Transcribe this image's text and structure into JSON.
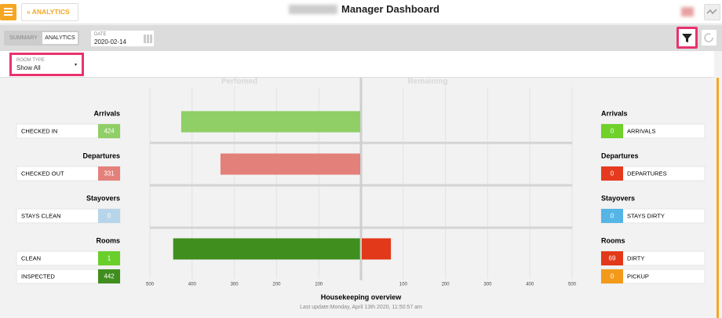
{
  "header": {
    "back": "ANALYTICS",
    "title": "Manager Dashboard"
  },
  "toolbar": {
    "tabs": [
      "SUMMARY",
      "ANALYTICS"
    ],
    "date_label": "DATE",
    "date": "2020-02-14"
  },
  "filter": {
    "label": "ROOM TYPE",
    "value": "Show All"
  },
  "chart_data": {
    "type": "diverging-bar",
    "title": "Housekeeping overview",
    "subtitle": "Last update:Monday, April 13th 2020, 11:50:57 am",
    "left_title": "Perfomed",
    "right_title": "Remaining",
    "left": [
      {
        "name": "Arrivals",
        "items": [
          {
            "name": "CHECKED IN",
            "value": 424,
            "color": "#8fcf66"
          }
        ]
      },
      {
        "name": "Departures",
        "items": [
          {
            "name": "CHECKED OUT",
            "value": 331,
            "color": "#e4807a"
          }
        ]
      },
      {
        "name": "Stayovers",
        "items": [
          {
            "name": "STAYS CLEAN",
            "value": 0,
            "color": "#b7d5ea"
          }
        ]
      },
      {
        "name": "Rooms",
        "items": [
          {
            "name": "CLEAN",
            "value": 1,
            "color": "#69cf2a"
          },
          {
            "name": "INSPECTED",
            "value": 442,
            "color": "#3f8e1e"
          }
        ]
      }
    ],
    "right": [
      {
        "name": "Arrivals",
        "items": [
          {
            "name": "ARRIVALS",
            "value": 0,
            "color": "#6fd12a"
          }
        ]
      },
      {
        "name": "Departures",
        "items": [
          {
            "name": "DEPARTURES",
            "value": 0,
            "color": "#e63a1e"
          }
        ]
      },
      {
        "name": "Stayovers",
        "items": [
          {
            "name": "STAYS DIRTY",
            "value": 0,
            "color": "#55b5e6"
          }
        ]
      },
      {
        "name": "Rooms",
        "items": [
          {
            "name": "DIRTY",
            "value": 69,
            "color": "#e2391a"
          },
          {
            "name": "PICKUP",
            "value": 0,
            "color": "#f39a1a"
          }
        ]
      }
    ],
    "xlim": [
      0,
      500
    ],
    "xticks": [
      100,
      200,
      300,
      400,
      500
    ],
    "grid": true
  }
}
